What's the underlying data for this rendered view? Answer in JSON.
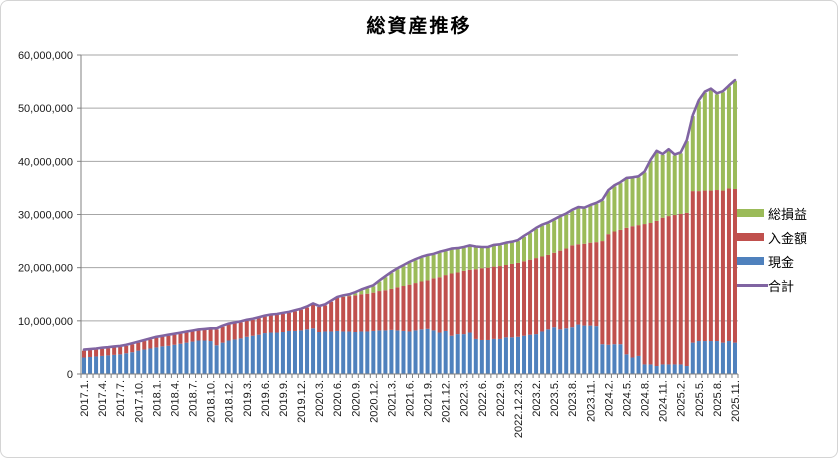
{
  "title": "総資産推移",
  "colors": {
    "cash": "#4F81BD",
    "deposit": "#C0504D",
    "profit": "#9BBB59",
    "total_line": "#8064A2",
    "gridline": "#A6A6A6",
    "axis": "#808080",
    "text": "#1a1a1a",
    "frame_border": "#D4D4D4"
  },
  "legend": {
    "items": [
      {
        "label": "総損益",
        "color": "#9BBB59",
        "type": "bar"
      },
      {
        "label": "入金額",
        "color": "#C0504D",
        "type": "bar"
      },
      {
        "label": "現金",
        "color": "#4F81BD",
        "type": "bar"
      },
      {
        "label": "合計",
        "color": "#8064A2",
        "type": "line"
      }
    ]
  },
  "chart_data": {
    "type": "bar",
    "subtype": "stacked-bars-with-total-line",
    "title": "総資産推移",
    "y_axis": {
      "min": 0,
      "max": 60000000,
      "step": 10000000,
      "tick_labels": [
        "0",
        "10,000,000",
        "20,000,000",
        "30,000,000",
        "40,000,000",
        "50,000,000",
        "60,000,000"
      ],
      "grid": true
    },
    "x_axis": {
      "note": "monthly categories 2017.1 - 2025.11, label shown every 3rd bar",
      "tick_labels": [
        {
          "i": 0,
          "t": "2017.1."
        },
        {
          "i": 3,
          "t": "2017.4."
        },
        {
          "i": 6,
          "t": "2017.7."
        },
        {
          "i": 9,
          "t": "2017.10."
        },
        {
          "i": 12,
          "t": "2018.1."
        },
        {
          "i": 15,
          "t": "2018.4."
        },
        {
          "i": 18,
          "t": "2018.7."
        },
        {
          "i": 21,
          "t": "2018.10."
        },
        {
          "i": 24,
          "t": "2018.12."
        },
        {
          "i": 27,
          "t": "2019.3."
        },
        {
          "i": 30,
          "t": "2019.6."
        },
        {
          "i": 33,
          "t": "2019.9."
        },
        {
          "i": 36,
          "t": "2019.12."
        },
        {
          "i": 39,
          "t": "2020.3."
        },
        {
          "i": 42,
          "t": "2020.6."
        },
        {
          "i": 45,
          "t": "2020.9."
        },
        {
          "i": 48,
          "t": "2020.12."
        },
        {
          "i": 51,
          "t": "2021.3."
        },
        {
          "i": 54,
          "t": "2021.6."
        },
        {
          "i": 57,
          "t": "2021.9."
        },
        {
          "i": 60,
          "t": "2021.12."
        },
        {
          "i": 63,
          "t": "2022.3."
        },
        {
          "i": 66,
          "t": "2022.6."
        },
        {
          "i": 69,
          "t": "2022.9."
        },
        {
          "i": 72,
          "t": "2022.12.23."
        },
        {
          "i": 75,
          "t": "2023.2."
        },
        {
          "i": 78,
          "t": "2023.5."
        },
        {
          "i": 81,
          "t": "2023.8."
        },
        {
          "i": 84,
          "t": "2023.11."
        },
        {
          "i": 87,
          "t": "2024.2."
        },
        {
          "i": 90,
          "t": "2024.5."
        },
        {
          "i": 93,
          "t": "2024.8."
        },
        {
          "i": 96,
          "t": "2024.11."
        },
        {
          "i": 99,
          "t": "2025.2."
        },
        {
          "i": 102,
          "t": "2025.5."
        },
        {
          "i": 105,
          "t": "2025.8."
        },
        {
          "i": 108,
          "t": "2025.11."
        }
      ]
    },
    "legend_position": "right",
    "series": [
      {
        "name": "現金",
        "type": "bar",
        "stack_order": 0,
        "color": "#4F81BD",
        "values": [
          3100000,
          3200000,
          3300000,
          3400000,
          3500000,
          3600000,
          3700000,
          3900000,
          4100000,
          4400000,
          4600000,
          4800000,
          5000000,
          5200000,
          5300000,
          5500000,
          5700000,
          5900000,
          6100000,
          6300000,
          6300000,
          6200000,
          5400000,
          5900000,
          6300000,
          6500000,
          6700000,
          7000000,
          7200000,
          7400000,
          7700000,
          7800000,
          7800000,
          7900000,
          8100000,
          8100000,
          8200000,
          8400000,
          8600000,
          7900000,
          8000000,
          8000000,
          8100000,
          8000000,
          8000000,
          7900000,
          8000000,
          8000000,
          8100000,
          8200000,
          8200000,
          8300000,
          8200000,
          8100000,
          8000000,
          8200000,
          8400000,
          8500000,
          8200000,
          7800000,
          8100000,
          7200000,
          7500000,
          7500000,
          7800000,
          6600000,
          6400000,
          6400000,
          6600000,
          6600000,
          6900000,
          6900000,
          7000000,
          7200000,
          7400000,
          7500000,
          8000000,
          8400000,
          8800000,
          8400000,
          8600000,
          8800000,
          9300000,
          9100000,
          9100000,
          9000000,
          5600000,
          5500000,
          5600000,
          5600000,
          3700000,
          3100000,
          3400000,
          1800000,
          1800000,
          1500000,
          1800000,
          1800000,
          1800000,
          1800000,
          1500000,
          5900000,
          6200000,
          6200000,
          6200000,
          6200000,
          5900000,
          6200000,
          5900000
        ]
      },
      {
        "name": "入金額",
        "type": "bar",
        "stack_order": 1,
        "color": "#C0504D",
        "values": [
          1300000,
          1300000,
          1300000,
          1350000,
          1350000,
          1400000,
          1400000,
          1400000,
          1500000,
          1500000,
          1600000,
          1700000,
          1800000,
          1800000,
          1900000,
          1900000,
          1900000,
          1900000,
          1900000,
          1900000,
          2000000,
          2200000,
          3000000,
          3000000,
          3000000,
          3000000,
          3000000,
          3000000,
          3000000,
          3100000,
          3100000,
          3200000,
          3300000,
          3400000,
          3400000,
          3700000,
          3900000,
          4100000,
          4500000,
          4700000,
          4900000,
          5600000,
          6200000,
          6500000,
          6650000,
          6900000,
          7000000,
          7100000,
          7200000,
          7400000,
          7550000,
          7700000,
          8100000,
          8450000,
          8800000,
          8900000,
          9000000,
          9100000,
          9800000,
          10400000,
          10500000,
          11700000,
          11600000,
          11900000,
          11800000,
          13100000,
          13500000,
          13600000,
          13600000,
          13700000,
          13600000,
          13800000,
          13900000,
          14000000,
          14100000,
          14300000,
          14100000,
          14000000,
          14000000,
          14800000,
          15000000,
          15400000,
          15100000,
          15400000,
          15600000,
          15800000,
          19400000,
          20800000,
          21200000,
          21500000,
          23800000,
          24700000,
          24600000,
          26400000,
          26600000,
          27300000,
          27600000,
          27900000,
          28100000,
          28300000,
          28800000,
          28500000,
          28200000,
          28300000,
          28300000,
          28400000,
          28600000,
          28700000,
          28900000
        ]
      },
      {
        "name": "総損益",
        "type": "bar",
        "stack_order": 2,
        "color": "#9BBB59",
        "values": [
          0,
          0,
          0,
          0,
          0,
          0,
          0,
          0,
          0,
          0,
          0,
          0,
          0,
          0,
          0,
          0,
          0,
          0,
          0,
          0,
          0,
          0,
          0,
          0,
          0,
          0,
          0,
          0,
          0,
          0,
          0,
          0,
          0,
          0,
          0,
          0,
          0,
          0,
          0,
          0,
          0,
          0,
          0,
          100000,
          150000,
          400000,
          700000,
          1000000,
          1200000,
          1800000,
          2450000,
          3000000,
          3400000,
          3750000,
          4100000,
          4300000,
          4450000,
          4600000,
          4400000,
          4600000,
          4500000,
          4500000,
          4400000,
          4300000,
          4400000,
          4100000,
          3800000,
          3700000,
          3900000,
          3900000,
          4000000,
          4000000,
          4100000,
          4600000,
          5000000,
          5500000,
          5800000,
          5900000,
          6100000,
          6300000,
          6400000,
          6500000,
          6800000,
          6600000,
          6900000,
          7200000,
          7600000,
          8100000,
          8500000,
          8800000,
          9200000,
          9000000,
          9000000,
          9700000,
          11700000,
          13000000,
          11800000,
          12400000,
          11200000,
          11400000,
          13500000,
          14100000,
          16900000,
          18400000,
          19000000,
          18000000,
          18500000,
          19200000,
          20300000
        ]
      },
      {
        "name": "合計",
        "type": "line",
        "color": "#8064A2",
        "values": [
          4400000,
          4500000,
          4600000,
          4750000,
          4850000,
          5000000,
          5100000,
          5300000,
          5600000,
          5900000,
          6200000,
          6500000,
          6800000,
          7000000,
          7200000,
          7400000,
          7600000,
          7800000,
          8000000,
          8200000,
          8300000,
          8400000,
          8400000,
          8900000,
          9300000,
          9500000,
          9700000,
          10000000,
          10200000,
          10500000,
          10800000,
          11000000,
          11100000,
          11300000,
          11500000,
          11800000,
          12100000,
          12500000,
          13100000,
          12600000,
          12900000,
          13600000,
          14300000,
          14600000,
          14800000,
          15200000,
          15700000,
          16100000,
          16500000,
          17400000,
          18200000,
          19000000,
          19700000,
          20300000,
          20900000,
          21400000,
          21850000,
          22200000,
          22400000,
          22800000,
          23100000,
          23400000,
          23500000,
          23700000,
          24000000,
          23800000,
          23700000,
          23700000,
          24100000,
          24200000,
          24500000,
          24700000,
          25000000,
          25800000,
          26500000,
          27300000,
          27900000,
          28300000,
          28900000,
          29500000,
          30000000,
          30700000,
          31200000,
          31100000,
          31600000,
          32000000,
          32600000,
          34400000,
          35300000,
          35900000,
          36700000,
          36800000,
          37000000,
          37900000,
          40100000,
          41800000,
          41200000,
          42100000,
          41100000,
          41500000,
          43800000,
          48500000,
          51300000,
          52900000,
          53500000,
          52600000,
          53000000,
          54100000,
          55100000
        ]
      }
    ]
  }
}
